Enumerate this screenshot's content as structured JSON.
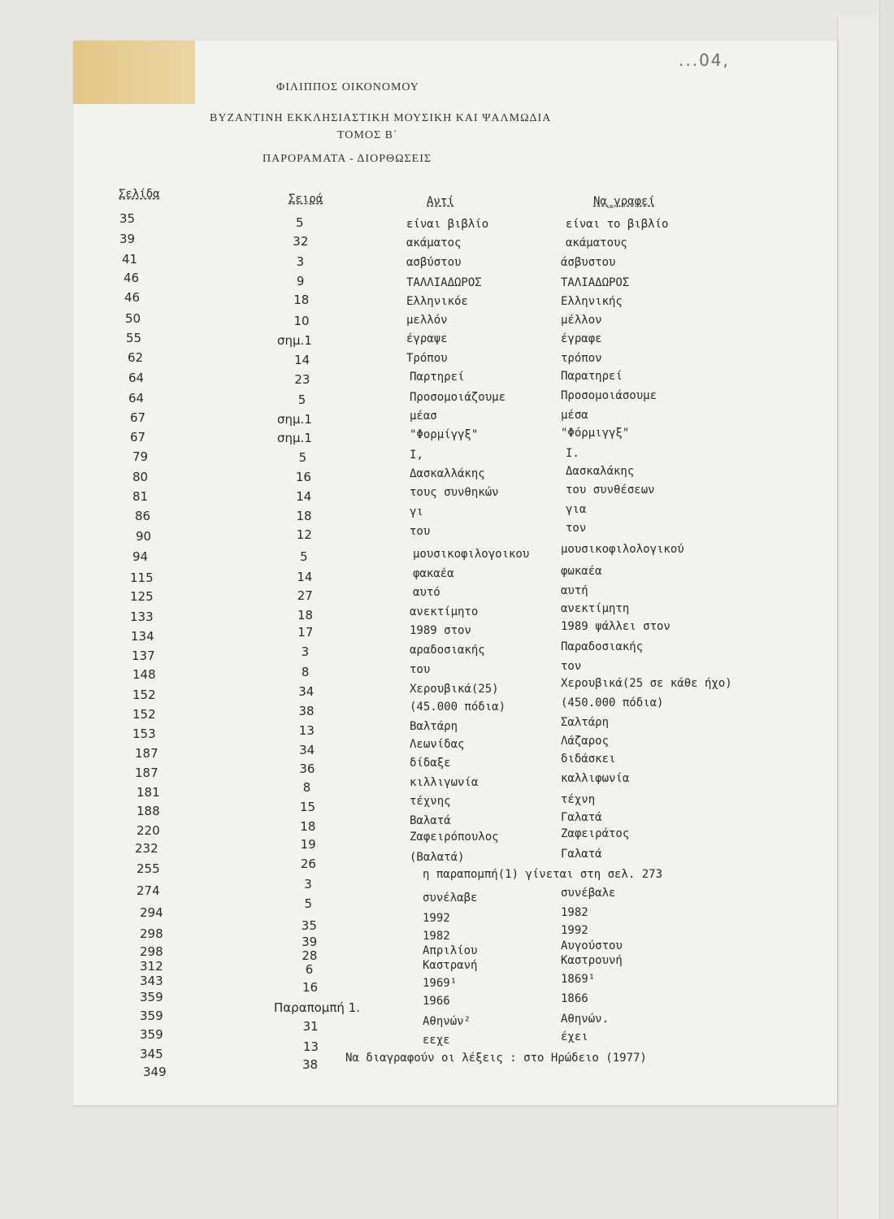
{
  "header": {
    "author": "ΦΙΛΙΠΠΟΣ   ΟΙΚΟΝΟΜΟΥ",
    "book_title": "ΒΥΖΑΝΤΙΝΗ ΕΚΚΛΗΣΙΑΣΤΙΚΗ ΜΟΥΣΙΚΗ ΚΑΙ ΨΑΛΜΩΔΙΑ",
    "volume": "ΤΟΜΟΣ  Β΄",
    "subtitle": "ΠΑΡΟΡΑΜΑΤΑ   -  ΔΙΟΡΘΩΣΕΙΣ",
    "handwritten_note": "...04,"
  },
  "columns": {
    "page": "Σελίδα",
    "line": "Σειρά",
    "instead": "Αντί",
    "should_read": "Να_γραφεί"
  },
  "rows": [
    {
      "page": "35",
      "line": "5",
      "wrong": "είναι βιβλίο",
      "correct": "είναι το βιβλίο"
    },
    {
      "page": "39",
      "line": "32",
      "wrong": "ακάματος",
      "correct": "ακάματους"
    },
    {
      "page": "41",
      "line": "3",
      "wrong": "ασβύστου",
      "correct": "άσβυστου"
    },
    {
      "page": "46",
      "line": "9",
      "wrong": "ΤΑΛΛΙΑΔΩΡΟΣ",
      "correct": "ΤΑΛΙΑΔΩΡΟΣ"
    },
    {
      "page": "46",
      "line": "18",
      "wrong": "Ελληνικόε",
      "correct": "Ελληνικής"
    },
    {
      "page": "50",
      "line": "10",
      "wrong": "μελλόν",
      "correct": "μέλλον"
    },
    {
      "page": "55",
      "line": "σημ.1",
      "wrong": "έγραψε",
      "correct": "έγραφε"
    },
    {
      "page": "62",
      "line": "14",
      "wrong": "Τρόπου",
      "correct": "τρόπον"
    },
    {
      "page": "64",
      "line": "23",
      "wrong": "Παρτηρεί",
      "correct": "Παρατηρεί"
    },
    {
      "page": "64",
      "line": "5",
      "wrong": "Προσομοιάζουμε",
      "correct": "Προσομοιάσουμε"
    },
    {
      "page": "67",
      "line": "σημ.1",
      "wrong": "μέασ",
      "correct": "μέσα"
    },
    {
      "page": "67",
      "line": "σημ.1",
      "wrong": "\"Φορμίγγξ\"",
      "correct": "\"Φόρμιγγξ\""
    },
    {
      "page": "79",
      "line": "5",
      "wrong": "Ι,",
      "correct": "Ι."
    },
    {
      "page": "80",
      "line": "16",
      "wrong": "Δασκαλλάκης",
      "correct": "Δασκαλάκης"
    },
    {
      "page": "81",
      "line": "14",
      "wrong": "τους συνθηκών",
      "correct": "του συνθέσεων"
    },
    {
      "page": "86",
      "line": "18",
      "wrong": "γι",
      "correct": "για"
    },
    {
      "page": "90",
      "line": "12",
      "wrong": "του",
      "correct": "τον"
    },
    {
      "page": "94",
      "line": "5",
      "wrong": "μουσικοφιλογοικου",
      "correct": "μουσικοφιλολογικού"
    },
    {
      "page": "115",
      "line": "14",
      "wrong": "φακαέα",
      "correct": "φωκαέα"
    },
    {
      "page": "125",
      "line": "27",
      "wrong": "αυτό",
      "correct": "αυτή"
    },
    {
      "page": "133",
      "line": "18",
      "wrong": "ανεκτίμητο",
      "correct": "ανεκτίμητη"
    },
    {
      "page": "134",
      "line": "17",
      "wrong": "1989 στον",
      "correct": "1989 ψάλλει στον"
    },
    {
      "page": "137",
      "line": "3",
      "wrong": "αραδοσιακής",
      "correct": "Παραδοσιακής"
    },
    {
      "page": "148",
      "line": "8",
      "wrong": "του",
      "correct": "τον"
    },
    {
      "page": "152",
      "line": "34",
      "wrong": "Χερουβικά(25)",
      "correct": "Χερουβικά(25 σε κάθε ήχο)"
    },
    {
      "page": "152",
      "line": "38",
      "wrong": "(45.000 πόδια)",
      "correct": "(450.000 πόδια)"
    },
    {
      "page": "153",
      "line": "13",
      "wrong": "Βαλτάρη",
      "correct": "Σαλτάρη"
    },
    {
      "page": "187",
      "line": "34",
      "wrong": "Λεωνίδας",
      "correct": "Λάζαρος"
    },
    {
      "page": "187",
      "line": "36",
      "wrong": "δίδαξε",
      "correct": "διδάσκει"
    },
    {
      "page": "181",
      "line": "8",
      "wrong": "κιλλιγωνία",
      "correct": "καλλιφωνία"
    },
    {
      "page": "188",
      "line": "15",
      "wrong": "τέχνης",
      "correct": "τέχνη"
    },
    {
      "page": "220",
      "line": "18",
      "wrong": "Βαλατά",
      "correct": "Γαλατά"
    },
    {
      "page": "232",
      "line": "19",
      "wrong": "Ζαφειρόπουλος",
      "correct": "Ζαφειράτος"
    },
    {
      "page": "255",
      "line": "26",
      "wrong": "(Βαλατά)",
      "correct": "Γαλατά"
    },
    {
      "page": "274",
      "line": "3",
      "wrong": "η παραπομπή(1) γίνεται στη σελ. 273",
      "correct": ""
    },
    {
      "page": "294",
      "line": "5",
      "wrong": "συνέλαβε",
      "correct": "συνέβαλε"
    },
    {
      "page": "298",
      "line": "35",
      "wrong": "1992",
      "correct": "1982"
    },
    {
      "page": "298",
      "line": "39",
      "wrong": "1982",
      "correct": "1992"
    },
    {
      "page": "312",
      "line": "28",
      "wrong": "Απριλίου",
      "correct": "Αυγούστου"
    },
    {
      "page": "343",
      "line": "6",
      "wrong": "Καστρανή",
      "correct": "Καστρουνή"
    },
    {
      "page": "359",
      "line": "16",
      "wrong": "1969¹",
      "correct": "1869¹"
    },
    {
      "page": "359",
      "line": "Παραπομπή 1.",
      "wrong": "1966",
      "correct": "1866"
    },
    {
      "page": "359",
      "line": "31",
      "wrong": "Αθηνών²",
      "correct": "Αθηνών."
    },
    {
      "page": "345",
      "line": "13",
      "wrong": "εεχε",
      "correct": "έχει"
    },
    {
      "page": "349",
      "line": "38",
      "wrong": "Να διαγραφούν οι λέξεις :  στο Ηρώδειο (1977)",
      "correct": ""
    }
  ]
}
